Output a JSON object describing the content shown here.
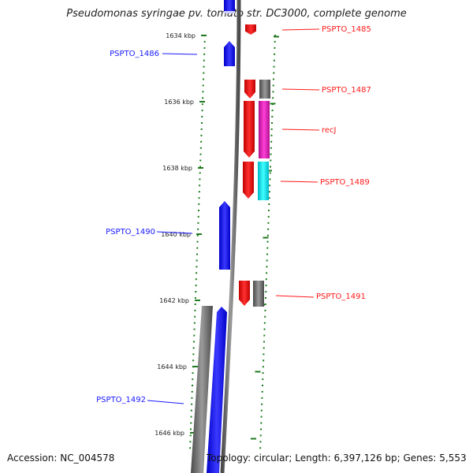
{
  "title": "Pseudomonas syringae pv. tomato str. DC3000, complete genome",
  "accession": "Accession: NC_004578",
  "topology": "Topology: circular; Length: 6,397,126 bp; Genes: 5,553",
  "colors": {
    "forward": "#1a1aff",
    "reverse": "#ff1a1a",
    "gray": "#6d6d6d",
    "magenta": "#e020c0",
    "cyan": "#10e8f0",
    "tick": "#1e7a1e"
  },
  "ticks": [
    "1634 kbp",
    "1636 kbp",
    "1638 kbp",
    "1640 kbp",
    "1642 kbp",
    "1644 kbp",
    "1646 kbp"
  ],
  "genes_forward": [
    "PSPTO_1486",
    "PSPTO_1490",
    "PSPTO_1492"
  ],
  "genes_reverse": [
    "PSPTO_1485",
    "PSPTO_1487",
    "recJ",
    "PSPTO_1489",
    "PSPTO_1491"
  ]
}
